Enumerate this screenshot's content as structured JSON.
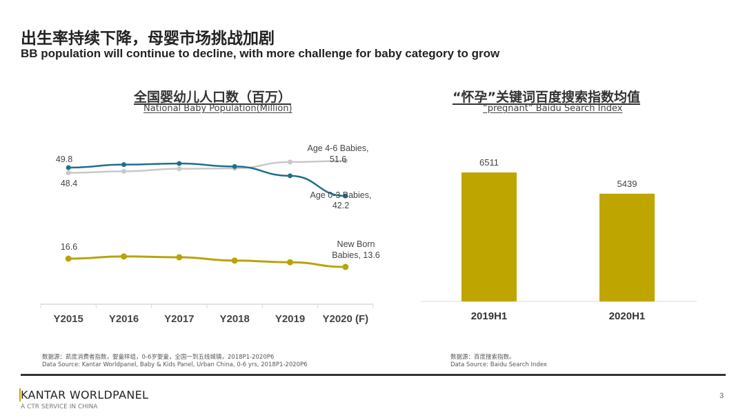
{
  "header": {
    "title_cn": "出生率持续下降，母婴市场挑战加剧",
    "title_en": "BB population will continue to decline, with more challenge for baby category to grow"
  },
  "chart_data": [
    {
      "type": "line",
      "title": "全国婴幼儿人口数（百万）",
      "subtitle": "National Baby Population(Million)",
      "xlabel": "",
      "ylabel": "",
      "categories": [
        "Y2015",
        "Y2016",
        "Y2017",
        "Y2018",
        "Y2019",
        "Y2020 (F)"
      ],
      "ylim": [
        0,
        60
      ],
      "grid": false,
      "series": [
        {
          "name": "Age 0-3 Babies",
          "color": "#1F6E8C",
          "values": [
            49.8,
            50.6,
            50.9,
            50.1,
            47.6,
            42.2
          ],
          "labels": {
            "first": "49.8",
            "last": "Age 0-3 Babies,",
            "last_value": "42.2"
          }
        },
        {
          "name": "Age 4-6 Babies",
          "color": "#C8C8C8",
          "values": [
            48.4,
            48.8,
            49.5,
            49.6,
            51.3,
            51.6
          ],
          "labels": {
            "first": "48.4",
            "last": "Age 4-6 Babies,",
            "last_value": "51.6"
          }
        },
        {
          "name": "New Born Babies",
          "color": "#B9A30A",
          "values": [
            16.6,
            17.4,
            17.1,
            15.9,
            15.3,
            13.6
          ],
          "labels": {
            "first": "16.6",
            "last": "New Born",
            "last_value": "Babies, 13.6"
          }
        }
      ]
    },
    {
      "type": "bar",
      "title": "“怀孕”关键词百度搜索指数均值",
      "subtitle": "“pregnant”  Baidu Search Index",
      "xlabel": "",
      "ylabel": "",
      "categories": [
        "2019H1",
        "2020H1"
      ],
      "values": [
        6511,
        5439
      ],
      "color": "#BFA500",
      "ylim": [
        0,
        8000
      ],
      "grid": false
    }
  ],
  "sources": {
    "left_cn": "数据源：凯度消费者指数，婴童样组，0-6岁婴童，全国一到五线城镇，2018P1-2020P6",
    "left_en": "Data Source: Kantar Worldpanel, Baby & Kids Panel, Urban China, 0-6 yrs, 2018P1-2020P6",
    "right_cn": "数据源：百度搜索指数。",
    "right_en": "Data Source: Baidu Search Index"
  },
  "footer": {
    "brand_first": "K",
    "brand_rest": "ANTAR WORLDPANEL",
    "brand_sub": "A CTR SERVICE IN CHINA",
    "page_number": "3"
  }
}
